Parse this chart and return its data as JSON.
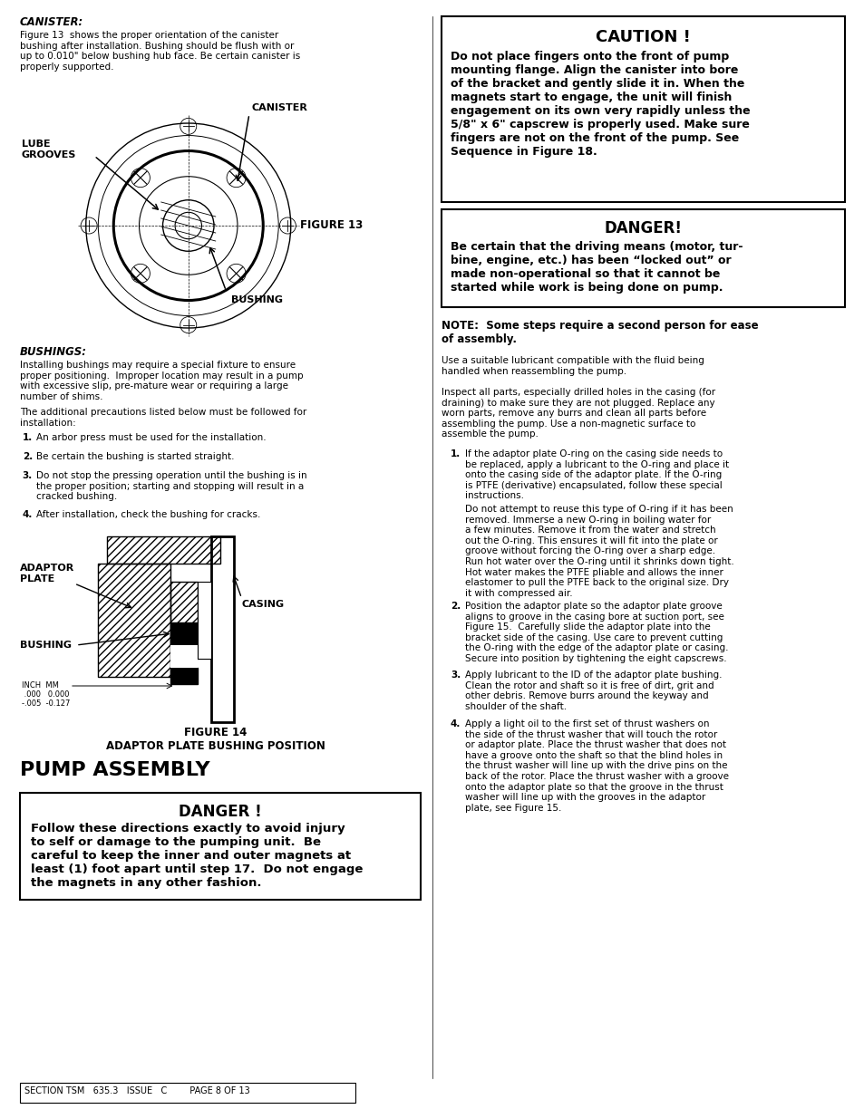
{
  "page_background": "#ffffff",
  "footer_text": "SECTION TSM   635.3   ISSUE   C        PAGE 8 OF 13",
  "caution_title": "CAUTION !",
  "caution_body": "Do not place fingers onto the front of pump\nmounting flange. Align the canister into bore\nof the bracket and gently slide it in. When the\nmagnets start to engage, the unit will finish\nengagement on its own very rapidly unless the\n5/8\" x 6\" capscrew is properly used. Make sure\nfingers are not on the front of the pump. See\nSequence in Figure 18.",
  "danger_top_title": "DANGER!",
  "danger_top_body": "Be certain that the driving means (motor, tur-\nbine, engine, etc.) has been “locked out” or\nmade non-operational so that it cannot be\nstarted while work is being done on pump.",
  "canister_heading": "CANISTER:",
  "canister_body": "Figure 13  shows the proper orientation of the canister\nbushing after installation. Bushing should be flush with or\nup to 0.010\" below bushing hub face. Be certain canister is\nproperly supported.",
  "bushings_heading": "BUSHINGS:",
  "bushings_body1": "Installing bushings may require a special fixture to ensure\nproper positioning.  Improper location may result in a pump\nwith excessive slip, pre-mature wear or requiring a large\nnumber of shims.",
  "bushings_body2": "The additional precautions listed below must be followed for\ninstallation:",
  "bushings_list": [
    "An arbor press must be used for the installation.",
    "Be certain the bushing is started straight.",
    "Do not stop the pressing operation until the bushing is in\nthe proper position; starting and stopping will result in a\ncracked bushing.",
    "After installation, check the bushing for cracks."
  ],
  "figure13_label": "FIGURE 13",
  "figure14_label": "FIGURE 14\nADAPTOR PLATE BUSHING POSITION",
  "pump_assembly_heading": "PUMP ASSEMBLY",
  "danger_bottom_title": "DANGER !",
  "danger_bottom_body": "Follow these directions exactly to avoid injury\nto self or damage to the pumping unit.  Be\ncareful to keep the inner and outer magnets at\nleast (1) foot apart until step 17.  Do not engage\nthe magnets in any other fashion.",
  "note_text": "NOTE:  Some steps require a second person for ease\nof assembly.",
  "right_body1": "Use a suitable lubricant compatible with the fluid being\nhandled when reassembling the pump.",
  "right_body2": "Inspect all parts, especially drilled holes in the casing (for\ndraining) to make sure they are not plugged. Replace any\nworn parts, remove any burrs and clean all parts before\nassembling the pump. Use a non-magnetic surface to\nassemble the pump.",
  "right_list": [
    "If the adaptor plate O-ring on the casing side needs to\nbe replaced, apply a lubricant to the O-ring and place it\nonto the casing side of the adaptor plate. If the O-ring\nis PTFE (derivative) encapsulated, follow these special\ninstructions.\n\nDo not attempt to reuse this type of O-ring if it has been\nremoved. Immerse a new O-ring in boiling water for\na few minutes. Remove it from the water and stretch\nout the O-ring. This ensures it will fit into the plate or\ngroove without forcing the O-ring over a sharp edge.\nRun hot water over the O-ring until it shrinks down tight.\nHot water makes the PTFE pliable and allows the inner\nelastomer to pull the PTFE back to the original size. Dry\nit with compressed air.",
    "Position the adaptor plate so the adaptor plate groove\naligns to groove in the casing bore at suction port, see\nFigure 15.  Carefully slide the adaptor plate into the\nbracket side of the casing. Use care to prevent cutting\nthe O-ring with the edge of the adaptor plate or casing.\nSecure into position by tightening the eight capscrews.",
    "Apply lubricant to the ID of the adaptor plate bushing.\nClean the rotor and shaft so it is free of dirt, grit and\nother debris. Remove burrs around the keyway and\nshoulder of the shaft.",
    "Apply a light oil to the first set of thrust washers on\nthe side of the thrust washer that will touch the rotor\nor adaptor plate. Place the thrust washer that does not\nhave a groove onto the shaft so that the blind holes in\nthe thrust washer will line up with the drive pins on the\nback of the rotor. Place the thrust washer with a groove\nonto the adaptor plate so that the groove in the thrust\nwasher will line up with the grooves in the adaptor\nplate, see Figure 15."
  ]
}
